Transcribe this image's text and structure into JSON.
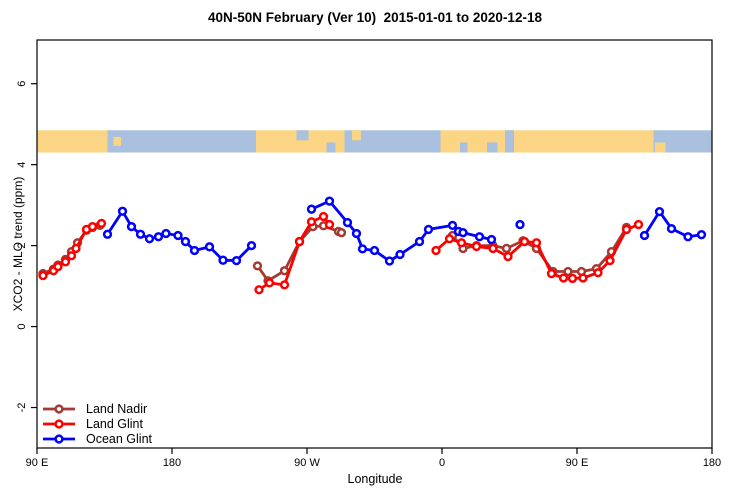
{
  "chart_data": {
    "type": "line",
    "title": "40N-50N February (Ver 10)  2015-01-01 to 2020-12-18",
    "xlabel": "Longitude",
    "ylabel": "XCO2 - MLO trend (ppm)",
    "x_axis": {
      "range": [
        90,
        540
      ],
      "ticks": [
        {
          "value": 90,
          "label": "90 E"
        },
        {
          "value": 180,
          "label": "180"
        },
        {
          "value": 270,
          "label": "90 W"
        },
        {
          "value": 360,
          "label": "0"
        },
        {
          "value": 450,
          "label": "90 E"
        },
        {
          "value": 540,
          "label": "180"
        }
      ],
      "note": "longitude axis wraps eastward from 90E around the globe to 180"
    },
    "y_axis": {
      "range": [
        -3,
        7.08
      ],
      "ticks": [
        {
          "value": -2,
          "label": "-2"
        },
        {
          "value": 0,
          "label": "0"
        },
        {
          "value": 2,
          "label": "2"
        },
        {
          "value": 4,
          "label": "4"
        },
        {
          "value": 6,
          "label": "6"
        }
      ]
    },
    "map_band": {
      "value_range": [
        4.3,
        4.85
      ],
      "land_color": "#FBD584",
      "ocean_color": "#A9C0DE",
      "segments": [
        {
          "from": 90,
          "to": 137,
          "type": "land"
        },
        {
          "from": 137,
          "to": 236,
          "type": "ocean"
        },
        {
          "from": 236,
          "to": 295,
          "type": "land"
        },
        {
          "from": 295,
          "to": 359,
          "type": "ocean"
        },
        {
          "from": 359,
          "to": 501,
          "type": "land"
        },
        {
          "from": 501,
          "to": 540,
          "type": "ocean"
        }
      ],
      "patches": [
        {
          "from": 141,
          "to": 146,
          "type": "land",
          "vpos": "mid"
        },
        {
          "from": 263,
          "to": 271,
          "type": "ocean",
          "vpos": "top"
        },
        {
          "from": 283,
          "to": 289,
          "type": "ocean",
          "vpos": "bottom"
        },
        {
          "from": 300,
          "to": 306,
          "type": "land",
          "vpos": "top"
        },
        {
          "from": 372,
          "to": 377,
          "type": "ocean",
          "vpos": "bottom"
        },
        {
          "from": 390,
          "to": 397,
          "type": "ocean",
          "vpos": "bottom"
        },
        {
          "from": 402,
          "to": 408,
          "type": "ocean",
          "vpos": "full"
        },
        {
          "from": 502,
          "to": 509,
          "type": "land",
          "vpos": "bottom"
        }
      ]
    },
    "series": [
      {
        "name": "Land Nadir",
        "color": "#A33A33",
        "segments": [
          [
            [
              94,
              1.31
            ],
            [
              101,
              1.42
            ],
            [
              104,
              1.52
            ],
            [
              109,
              1.66
            ],
            [
              113,
              1.85
            ],
            [
              117,
              2.07
            ],
            [
              123,
              2.38
            ],
            [
              127,
              2.45
            ],
            [
              132,
              2.5
            ]
          ],
          [
            [
              237,
              1.5
            ],
            [
              244,
              1.13
            ],
            [
              255,
              1.38
            ],
            [
              265,
              2.1
            ],
            [
              274,
              2.47
            ],
            [
              281,
              2.49
            ],
            [
              291,
              2.35
            ],
            [
              293,
              2.32
            ]
          ],
          [
            [
              367,
              2.25
            ],
            [
              374,
              1.93
            ],
            [
              383,
              2.0
            ],
            [
              394,
              2.0
            ],
            [
              403,
              1.93
            ],
            [
              414,
              2.12
            ],
            [
              423,
              1.93
            ],
            [
              434,
              1.36
            ],
            [
              444,
              1.36
            ],
            [
              453,
              1.36
            ],
            [
              463,
              1.43
            ],
            [
              473,
              1.85
            ],
            [
              483,
              2.45
            ]
          ]
        ]
      },
      {
        "name": "Land Glint",
        "color": "#FF0000",
        "segments": [
          [
            [
              94,
              1.26
            ],
            [
              101,
              1.38
            ],
            [
              104,
              1.48
            ],
            [
              109,
              1.6
            ],
            [
              113,
              1.75
            ],
            [
              116,
              1.93
            ],
            [
              123,
              2.4
            ],
            [
              127,
              2.47
            ],
            [
              133,
              2.55
            ]
          ],
          [
            [
              238,
              0.91
            ],
            [
              245,
              1.08
            ],
            [
              255,
              1.03
            ],
            [
              265,
              2.1
            ],
            [
              273,
              2.59
            ],
            [
              281,
              2.72
            ],
            [
              285,
              2.52
            ]
          ],
          [
            [
              356,
              1.88
            ],
            [
              365,
              2.17
            ],
            [
              373,
              2.07
            ],
            [
              383,
              1.98
            ],
            [
              394,
              1.93
            ],
            [
              404,
              1.73
            ],
            [
              415,
              2.1
            ],
            [
              423,
              2.07
            ],
            [
              433,
              1.31
            ],
            [
              441,
              1.2
            ],
            [
              447,
              1.19
            ],
            [
              454,
              1.2
            ],
            [
              464,
              1.33
            ],
            [
              472,
              1.63
            ],
            [
              483,
              2.4
            ],
            [
              491,
              2.52
            ]
          ]
        ]
      },
      {
        "name": "Ocean Glint",
        "color": "#0000FF",
        "segments": [
          [
            [
              137,
              2.28
            ],
            [
              147,
              2.85
            ],
            [
              153,
              2.47
            ],
            [
              159,
              2.28
            ],
            [
              165,
              2.17
            ],
            [
              171,
              2.22
            ],
            [
              176,
              2.3
            ],
            [
              184,
              2.25
            ],
            [
              189,
              2.1
            ],
            [
              195,
              1.88
            ],
            [
              205,
              1.97
            ],
            [
              214,
              1.64
            ],
            [
              223,
              1.63
            ],
            [
              233,
              2.0
            ]
          ],
          [
            [
              273,
              2.9
            ],
            [
              285,
              3.1
            ],
            [
              297,
              2.57
            ],
            [
              303,
              2.3
            ],
            [
              307,
              1.92
            ],
            [
              315,
              1.88
            ],
            [
              325,
              1.62
            ],
            [
              332,
              1.78
            ],
            [
              345,
              2.1
            ],
            [
              351,
              2.4
            ],
            [
              367,
              2.5
            ],
            [
              371,
              2.35
            ],
            [
              374,
              2.32
            ],
            [
              385,
              2.22
            ],
            [
              393,
              2.15
            ]
          ],
          [
            [
              412,
              2.52
            ]
          ],
          [
            [
              495,
              2.25
            ],
            [
              505,
              2.84
            ],
            [
              513,
              2.42
            ],
            [
              524,
              2.22
            ],
            [
              533,
              2.27
            ]
          ]
        ]
      }
    ],
    "legend": {
      "position": "bottom-left"
    },
    "grid": false
  }
}
